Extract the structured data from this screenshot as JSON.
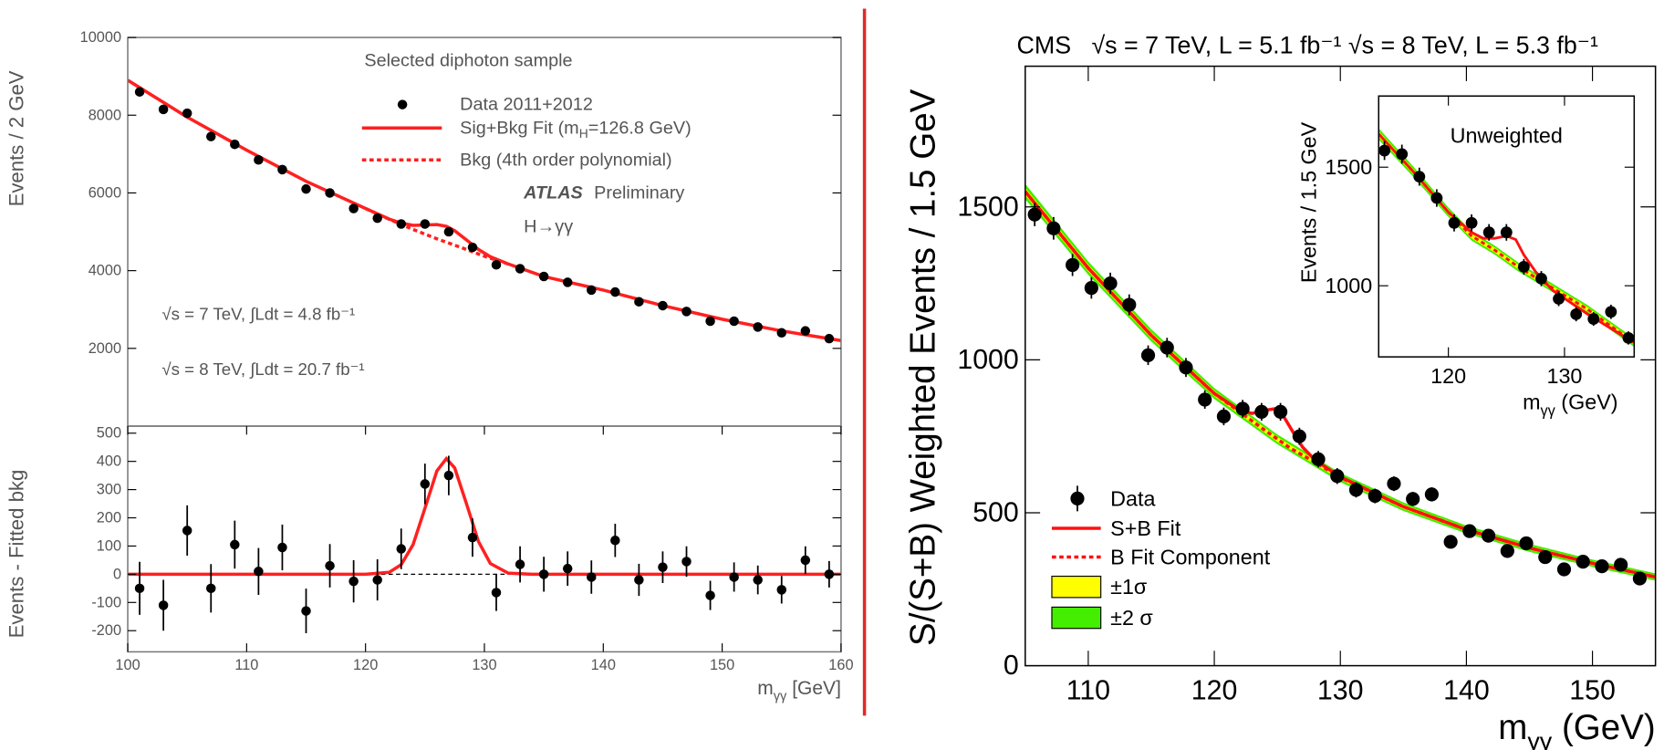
{
  "chart_data": [
    {
      "type": "scatter",
      "ylabel": "Events / 2 GeV",
      "xlim": [
        100,
        160
      ],
      "ylim": [
        0,
        10000
      ],
      "yticks": [
        2000,
        4000,
        6000,
        8000,
        10000
      ],
      "annotations": [
        "Selected diphoton sample",
        "ATLAS",
        "Preliminary",
        "H→γγ",
        "√s = 7 TeV, ∫Ldt = 4.8 fb⁻¹",
        "√s = 8 TeV, ∫Ldt = 20.7 fb⁻¹"
      ],
      "series": [
        {
          "name": "Data 2011+2012",
          "color": "#000000",
          "style": "points",
          "x": [
            101,
            103,
            105,
            107,
            109,
            111,
            113,
            115,
            117,
            119,
            121,
            123,
            125,
            127,
            129,
            131,
            133,
            135,
            137,
            139,
            141,
            143,
            145,
            147,
            149,
            151,
            153,
            155,
            157,
            159
          ],
          "values": [
            8600,
            8150,
            8050,
            7450,
            7250,
            6850,
            6600,
            6100,
            6000,
            5600,
            5350,
            5200,
            5200,
            5000,
            4600,
            4150,
            4050,
            3850,
            3700,
            3500,
            3450,
            3200,
            3100,
            2950,
            2700,
            2700,
            2550,
            2400,
            2450,
            2250
          ]
        },
        {
          "name": [
            "Sig+Bkg Fit (m",
            {
              "sub": "H"
            },
            "=126.8 GeV)"
          ],
          "color": "#ff2020",
          "style": "line",
          "x": [
            100,
            105,
            110,
            115,
            120,
            122,
            123,
            124,
            125,
            126,
            126.8,
            127.5,
            128.5,
            129.5,
            130.5,
            132,
            135,
            140,
            145,
            150,
            155,
            160
          ],
          "values": [
            8900,
            7950,
            7100,
            6300,
            5600,
            5327,
            5224,
            5165,
            5174,
            5186,
            5140,
            5027,
            4789,
            4546,
            4358,
            4174,
            3850,
            3500,
            3100,
            2750,
            2450,
            2200
          ]
        },
        {
          "name": "Bkg (4th order polynomial)",
          "color": "#ff2020",
          "style": "dashed",
          "x": [
            120,
            122,
            124,
            126,
            128,
            130,
            132
          ],
          "values": [
            5600,
            5320,
            5060,
            4820,
            4600,
            4370,
            4170
          ]
        }
      ]
    },
    {
      "type": "scatter",
      "ylabel": "Events - Fitted bkg",
      "xlabel": [
        "m",
        {
          "sub": "γγ"
        },
        " [GeV]"
      ],
      "xlim": [
        100,
        160
      ],
      "xticks": [
        100,
        110,
        120,
        130,
        140,
        150,
        160
      ],
      "ylim": [
        -275,
        525
      ],
      "yticks": [
        -200,
        -100,
        0,
        100,
        200,
        300,
        400,
        500
      ],
      "series": [
        {
          "color": "#000000",
          "style": "dashed",
          "x": [
            100,
            160
          ],
          "values": [
            0,
            0
          ]
        },
        {
          "color": "#ff2020",
          "style": "line",
          "x": [
            100,
            120,
            122,
            123,
            124,
            125,
            126,
            126.8,
            127.5,
            128.5,
            129.5,
            130.5,
            132,
            134,
            160
          ],
          "values": [
            0,
            0,
            7,
            34,
            105,
            234,
            366,
            410,
            377,
            249,
            116,
            38,
            4,
            0,
            0
          ]
        },
        {
          "color": "#000000",
          "style": "points",
          "x": [
            101,
            103,
            105,
            107,
            109,
            111,
            113,
            115,
            117,
            119,
            121,
            123,
            125,
            127,
            129,
            131,
            133,
            135,
            137,
            139,
            141,
            143,
            145,
            147,
            149,
            151,
            153,
            155,
            157,
            159
          ],
          "values": [
            -50,
            -110,
            155,
            -50,
            105,
            10,
            95,
            -130,
            30,
            -25,
            -20,
            90,
            320,
            350,
            130,
            -65,
            35,
            0,
            20,
            -10,
            120,
            -20,
            25,
            45,
            -75,
            -10,
            -20,
            -55,
            50,
            0
          ],
          "errors": [
            94,
            90,
            89,
            86,
            85,
            83,
            81,
            79,
            77,
            75,
            73,
            72,
            72,
            70,
            68,
            65,
            64,
            62,
            61,
            59,
            59,
            57,
            56,
            54,
            52,
            52,
            51,
            49,
            49,
            47
          ]
        }
      ]
    },
    {
      "type": "scatter",
      "title": "CMS   √s = 7 TeV, L = 5.1 fb⁻¹ √s = 8 TeV, L = 5.3 fb⁻¹",
      "ylabel": "S/(S+B) Weighted Events / 1.5 GeV",
      "xlabel": [
        "m",
        {
          "sub": "γγ"
        },
        " (GeV)"
      ],
      "xlim": [
        105,
        155
      ],
      "xticks": [
        110,
        120,
        130,
        140,
        150
      ],
      "ylim": [
        0,
        1960
      ],
      "yticks": [
        0,
        500,
        1000,
        1500
      ],
      "series": [
        {
          "name": "Data",
          "color": "#000000",
          "style": "points",
          "x": [
            105.75,
            107.25,
            108.75,
            110.25,
            111.75,
            113.25,
            114.75,
            116.25,
            117.75,
            119.25,
            120.75,
            122.25,
            123.75,
            125.25,
            126.75,
            128.25,
            129.75,
            131.25,
            132.75,
            134.25,
            135.75,
            137.25,
            138.75,
            140.25,
            141.75,
            143.25,
            144.75,
            146.25,
            147.75,
            149.25,
            150.75,
            152.25,
            153.75
          ],
          "values": [
            1475,
            1430,
            1310,
            1235,
            1250,
            1180,
            1015,
            1040,
            975,
            870,
            815,
            840,
            830,
            830,
            750,
            675,
            620,
            575,
            555,
            595,
            545,
            560,
            405,
            440,
            425,
            375,
            400,
            355,
            315,
            340,
            325,
            330,
            285
          ],
          "errors": [
            38,
            37,
            36,
            35,
            35,
            34,
            32,
            32,
            31,
            30,
            29,
            29,
            29,
            29,
            28,
            27,
            26,
            25,
            24,
            24,
            23,
            23,
            21,
            21,
            21,
            20,
            20,
            19,
            18,
            18,
            18,
            18,
            17
          ]
        },
        {
          "name": "S+B Fit",
          "color": "#ff1010",
          "style": "line",
          "x": [
            105,
            110,
            115,
            120,
            122,
            123,
            124,
            124.8,
            125.5,
            126.3,
            127,
            128,
            130,
            135,
            140,
            145,
            150,
            155
          ],
          "values": [
            1550,
            1300,
            1080,
            890,
            835,
            825,
            835,
            840,
            815,
            760,
            715,
            672,
            617,
            520,
            445,
            385,
            335,
            290
          ]
        },
        {
          "name": "B Fit Component",
          "color": "#ff1010",
          "style": "dashed",
          "x": [
            105,
            110,
            115,
            120,
            122,
            124,
            126,
            128,
            130,
            135,
            140,
            145,
            150,
            155
          ],
          "values": [
            1550,
            1300,
            1080,
            890,
            830,
            770,
            712,
            665,
            615,
            520,
            445,
            385,
            335,
            290
          ]
        },
        {
          "name": "±1σ",
          "color": "#ffff00",
          "style": "band",
          "x": [
            105,
            110,
            115,
            120,
            125,
            130,
            135,
            140,
            145,
            150,
            155
          ],
          "values": [
            1550,
            1300,
            1080,
            890,
            740,
            615,
            520,
            445,
            385,
            335,
            290
          ],
          "errors": [
            12,
            11,
            10,
            9,
            8,
            7,
            7,
            6,
            6,
            6,
            6
          ]
        },
        {
          "name": "±2 σ",
          "color": "#44ee00",
          "style": "band",
          "x": [
            105,
            110,
            115,
            120,
            125,
            130,
            135,
            140,
            145,
            150,
            155
          ],
          "values": [
            1550,
            1300,
            1080,
            890,
            740,
            615,
            520,
            445,
            385,
            335,
            290
          ],
          "errors": [
            25,
            22,
            20,
            18,
            16,
            15,
            14,
            13,
            13,
            12,
            12
          ]
        }
      ]
    },
    {
      "type": "scatter",
      "title": "Unweighted",
      "ylabel": "Events / 1.5 GeV",
      "xlabel": [
        "m",
        {
          "sub": "γγ"
        },
        " (GeV)"
      ],
      "xlim": [
        114,
        136
      ],
      "xticks": [
        120,
        130
      ],
      "ylim": [
        700,
        1800
      ],
      "yticks": [
        1000,
        1500
      ],
      "series": [
        {
          "color": "#000000",
          "style": "points",
          "x": [
            114.5,
            116,
            117.5,
            119,
            120.5,
            122,
            123.5,
            125,
            126.5,
            128,
            129.5,
            131,
            132.5,
            134,
            135.5
          ],
          "values": [
            1570,
            1555,
            1460,
            1370,
            1265,
            1265,
            1225,
            1225,
            1080,
            1030,
            945,
            880,
            860,
            890,
            780
          ],
          "errors": [
            40,
            40,
            38,
            37,
            36,
            36,
            35,
            35,
            33,
            32,
            31,
            30,
            29,
            30,
            28
          ]
        },
        {
          "color": "#ff1010",
          "style": "line",
          "x": [
            114,
            117,
            120,
            122,
            123,
            124,
            125,
            125.8,
            126.5,
            127.5,
            129,
            132,
            136
          ],
          "values": [
            1640,
            1480,
            1310,
            1225,
            1200,
            1200,
            1210,
            1195,
            1130,
            1060,
            980,
            880,
            760
          ]
        },
        {
          "color": "#ff1010",
          "style": "dashed",
          "x": [
            114,
            117,
            120,
            122,
            124,
            126,
            128,
            130,
            132,
            136
          ],
          "values": [
            1640,
            1480,
            1310,
            1210,
            1150,
            1080,
            1020,
            960,
            900,
            760
          ]
        },
        {
          "color": "#ffff00",
          "style": "band",
          "x": [
            114,
            117,
            120,
            122,
            124,
            126,
            128,
            130,
            132,
            136
          ],
          "values": [
            1640,
            1480,
            1310,
            1210,
            1150,
            1080,
            1020,
            960,
            900,
            760
          ],
          "errors": [
            12,
            11,
            10,
            10,
            10,
            10,
            9,
            9,
            9,
            9
          ]
        },
        {
          "color": "#44ee00",
          "style": "band",
          "x": [
            114,
            117,
            120,
            122,
            124,
            126,
            128,
            130,
            132,
            136
          ],
          "values": [
            1640,
            1480,
            1310,
            1210,
            1150,
            1080,
            1020,
            960,
            900,
            760
          ],
          "errors": [
            24,
            22,
            20,
            20,
            19,
            19,
            18,
            18,
            18,
            18
          ]
        }
      ]
    }
  ]
}
